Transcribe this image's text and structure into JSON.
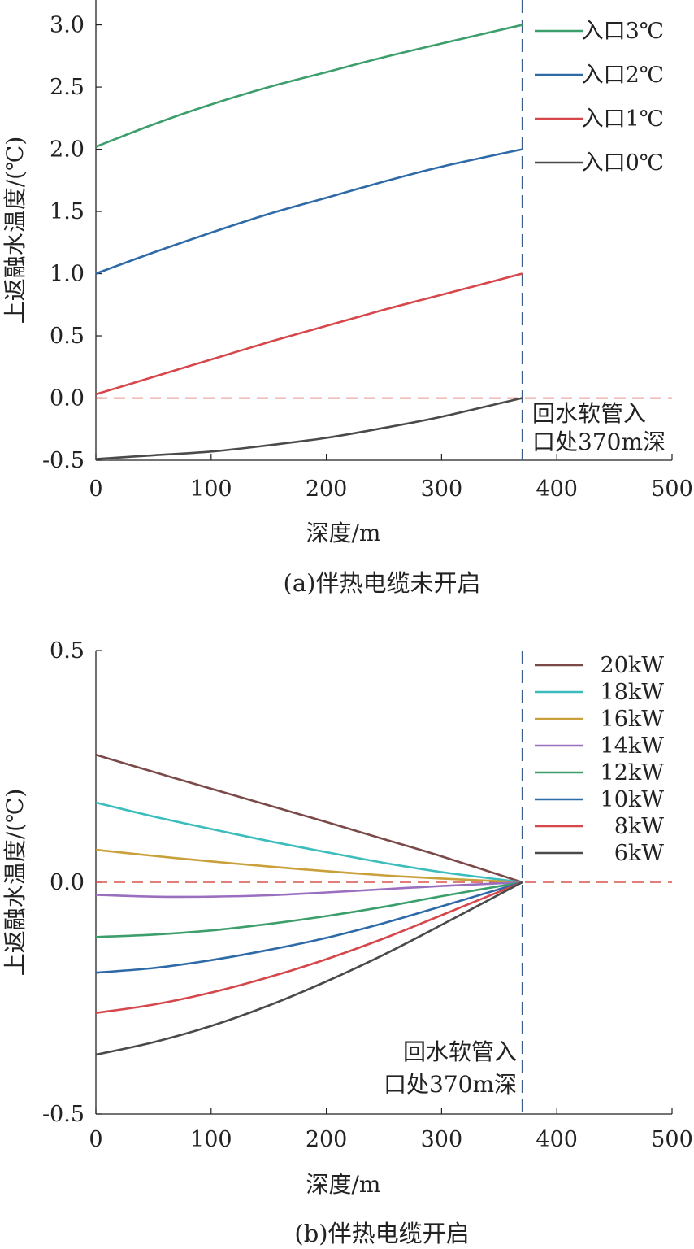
{
  "chart_data": [
    {
      "type": "line",
      "caption": "(a)伴热电缆未开启",
      "xlabel": "深度/m",
      "ylabel": "上返融水温度/(℃)",
      "xlim": [
        0,
        500
      ],
      "ylim": [
        -0.5,
        3.2
      ],
      "xticks": [
        0,
        100,
        200,
        300,
        400,
        500
      ],
      "yticks": [
        -0.5,
        0.0,
        0.5,
        1.0,
        1.5,
        2.0,
        2.5,
        3.0
      ],
      "ytick_labels": [
        "-0.5",
        "0.0",
        "0.5",
        "1.0",
        "1.5",
        "2.0",
        "2.5",
        "3.0"
      ],
      "reference_hline": {
        "y": 0,
        "style": "dashed",
        "color": "#d9534f"
      },
      "reference_vline": {
        "x": 370,
        "style": "dashed",
        "color": "#3a5f8a"
      },
      "annotation": {
        "lines": [
          "回水软管入",
          "口处370m深"
        ]
      },
      "legend_position": "top-right",
      "series": [
        {
          "name": "入口3℃",
          "color": "#3c9e6b",
          "x": [
            0,
            50,
            100,
            150,
            200,
            250,
            300,
            370
          ],
          "y": [
            2.02,
            2.2,
            2.36,
            2.5,
            2.62,
            2.74,
            2.85,
            3.0
          ]
        },
        {
          "name": "入口2℃",
          "color": "#2f6aa8",
          "x": [
            0,
            50,
            100,
            150,
            200,
            250,
            300,
            370
          ],
          "y": [
            1.0,
            1.17,
            1.33,
            1.48,
            1.61,
            1.74,
            1.86,
            2.0
          ]
        },
        {
          "name": "入口1℃",
          "color": "#d6474c",
          "x": [
            0,
            50,
            100,
            150,
            200,
            250,
            300,
            370
          ],
          "y": [
            0.03,
            0.17,
            0.31,
            0.45,
            0.58,
            0.71,
            0.83,
            1.0
          ]
        },
        {
          "name": "入口0℃",
          "color": "#4a4a4a",
          "x": [
            0,
            50,
            100,
            150,
            200,
            250,
            300,
            370
          ],
          "y": [
            -0.49,
            -0.46,
            -0.43,
            -0.38,
            -0.32,
            -0.24,
            -0.15,
            0.0
          ]
        }
      ]
    },
    {
      "type": "line",
      "caption": "(b)伴热电缆开启",
      "xlabel": "深度/m",
      "ylabel": "上返融水温度/(℃)",
      "xlim": [
        0,
        500
      ],
      "ylim": [
        -0.5,
        0.5
      ],
      "xticks": [
        0,
        100,
        200,
        300,
        400,
        500
      ],
      "yticks": [
        -0.5,
        0.0,
        0.5
      ],
      "ytick_labels": [
        "-0.5",
        "0.0",
        "0.5"
      ],
      "reference_hline": {
        "y": 0,
        "style": "dashed",
        "color": "#d9534f"
      },
      "reference_vline": {
        "x": 370,
        "style": "dashed",
        "color": "#3a5f8a"
      },
      "annotation": {
        "lines": [
          "回水软管入",
          "口处370m深"
        ]
      },
      "legend_position": "top-right",
      "series": [
        {
          "name": "20kW",
          "color": "#7a4a48",
          "x": [
            0,
            50,
            100,
            150,
            200,
            250,
            300,
            370
          ],
          "y": [
            0.275,
            0.238,
            0.202,
            0.166,
            0.13,
            0.093,
            0.056,
            0.0
          ]
        },
        {
          "name": "18kW",
          "color": "#3bbdbd",
          "x": [
            0,
            50,
            100,
            150,
            200,
            250,
            300,
            370
          ],
          "y": [
            0.172,
            0.142,
            0.115,
            0.089,
            0.065,
            0.042,
            0.022,
            0.0
          ]
        },
        {
          "name": "16kW",
          "color": "#c9a03a",
          "x": [
            0,
            50,
            100,
            150,
            200,
            250,
            300,
            370
          ],
          "y": [
            0.07,
            0.057,
            0.045,
            0.034,
            0.024,
            0.015,
            0.008,
            0.0
          ]
        },
        {
          "name": "14kW",
          "color": "#9b6fc0",
          "x": [
            0,
            50,
            100,
            150,
            200,
            250,
            300,
            370
          ],
          "y": [
            -0.027,
            -0.031,
            -0.031,
            -0.028,
            -0.022,
            -0.015,
            -0.008,
            0.0
          ]
        },
        {
          "name": "12kW",
          "color": "#3c9e6b",
          "x": [
            0,
            50,
            100,
            150,
            200,
            250,
            300,
            370
          ],
          "y": [
            -0.118,
            -0.113,
            -0.104,
            -0.09,
            -0.073,
            -0.053,
            -0.03,
            0.0
          ]
        },
        {
          "name": "10kW",
          "color": "#2f6aa8",
          "x": [
            0,
            50,
            100,
            150,
            200,
            250,
            300,
            370
          ],
          "y": [
            -0.195,
            -0.185,
            -0.168,
            -0.146,
            -0.12,
            -0.088,
            -0.052,
            0.0
          ]
        },
        {
          "name": "8kW",
          "color": "#d6474c",
          "x": [
            0,
            50,
            100,
            150,
            200,
            250,
            300,
            370
          ],
          "y": [
            -0.282,
            -0.264,
            -0.238,
            -0.205,
            -0.166,
            -0.121,
            -0.071,
            0.0
          ]
        },
        {
          "name": "6kW",
          "color": "#4a4a4a",
          "x": [
            0,
            50,
            100,
            150,
            200,
            250,
            300,
            370
          ],
          "y": [
            -0.372,
            -0.345,
            -0.31,
            -0.266,
            -0.214,
            -0.156,
            -0.092,
            0.0
          ]
        }
      ]
    }
  ]
}
